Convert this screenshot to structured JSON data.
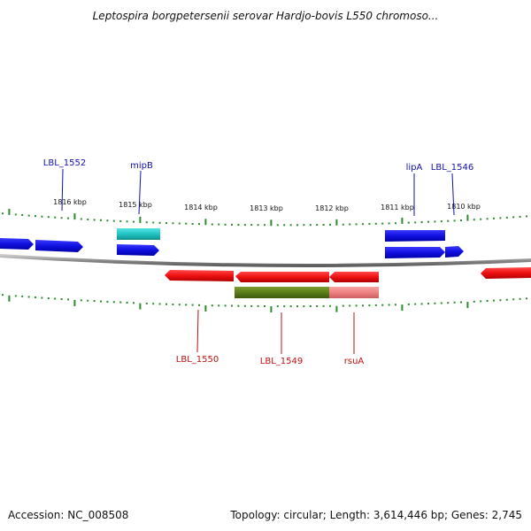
{
  "title": "Leptospira borgpetersenii serovar Hardjo-bovis L550 chromoso...",
  "footer": {
    "accession": "Accession: NC_008508",
    "summary": "Topology: circular; Length: 3,614,446 bp; Genes: 2,745"
  },
  "scale_labels": [
    "1816 kbp",
    "1815 kbp",
    "1814 kbp",
    "1813 kbp",
    "1812 kbp",
    "1811 kbp",
    "1810 kbp"
  ],
  "forward_gene_labels": [
    "LBL_1552",
    "mipB",
    "lipA",
    "LBL_1546"
  ],
  "reverse_gene_labels": [
    "LBL_1550",
    "LBL_1549",
    "rsuA"
  ],
  "colors": {
    "forward_cds": "#1010e0",
    "reverse_cds": "#ee1111",
    "forward_feature": "#22c4c4",
    "reverse_feature_dark": "#5a7d18",
    "reverse_feature_light": "#ee8080",
    "backbone": "#8a8a8a",
    "ticks": "#2e8b2e",
    "forward_label": "#1010b0",
    "reverse_label": "#c01010"
  }
}
